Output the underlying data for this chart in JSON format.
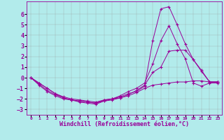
{
  "bg_color": "#b2ebeb",
  "grid_color": "#999999",
  "line_color": "#990099",
  "marker": "+",
  "xlabel": "Windchill (Refroidissement éolien,°C)",
  "xlabel_fontsize": 6,
  "ylim": [
    -3.5,
    7.2
  ],
  "xlim": [
    -0.5,
    23.5
  ],
  "yticks": [
    -3,
    -2,
    -1,
    0,
    1,
    2,
    3,
    4,
    5,
    6
  ],
  "ytick_fontsize": 6,
  "xtick_fontsize": 4.5,
  "lines": [
    [
      0.0,
      -0.5,
      -1.0,
      -1.5,
      -1.9,
      -2.1,
      -2.2,
      -2.3,
      -2.4,
      -2.1,
      -2.0,
      -1.8,
      -1.5,
      -1.3,
      -0.8,
      3.5,
      6.5,
      6.7,
      5.0,
      3.2,
      1.7,
      0.6,
      -0.4,
      -0.4
    ],
    [
      0.0,
      -0.7,
      -1.3,
      -1.7,
      -2.0,
      -2.1,
      -2.3,
      -2.4,
      -2.5,
      -2.2,
      -2.0,
      -1.7,
      -1.3,
      -1.0,
      -0.5,
      1.3,
      3.5,
      4.9,
      3.2,
      1.8,
      -0.5,
      -0.8,
      -0.5,
      -0.5
    ],
    [
      0.0,
      -0.6,
      -1.2,
      -1.6,
      -1.9,
      -2.1,
      -2.2,
      -2.3,
      -2.4,
      -2.2,
      -2.1,
      -1.9,
      -1.6,
      -1.2,
      -0.7,
      0.5,
      1.0,
      2.5,
      2.6,
      2.6,
      1.7,
      0.7,
      -0.4,
      -0.4
    ],
    [
      0.0,
      -0.5,
      -1.0,
      -1.5,
      -1.8,
      -2.0,
      -2.1,
      -2.2,
      -2.3,
      -2.1,
      -2.0,
      -1.9,
      -1.7,
      -1.4,
      -1.0,
      -0.7,
      -0.6,
      -0.5,
      -0.4,
      -0.4,
      -0.3,
      -0.3,
      -0.4,
      -0.4
    ]
  ]
}
